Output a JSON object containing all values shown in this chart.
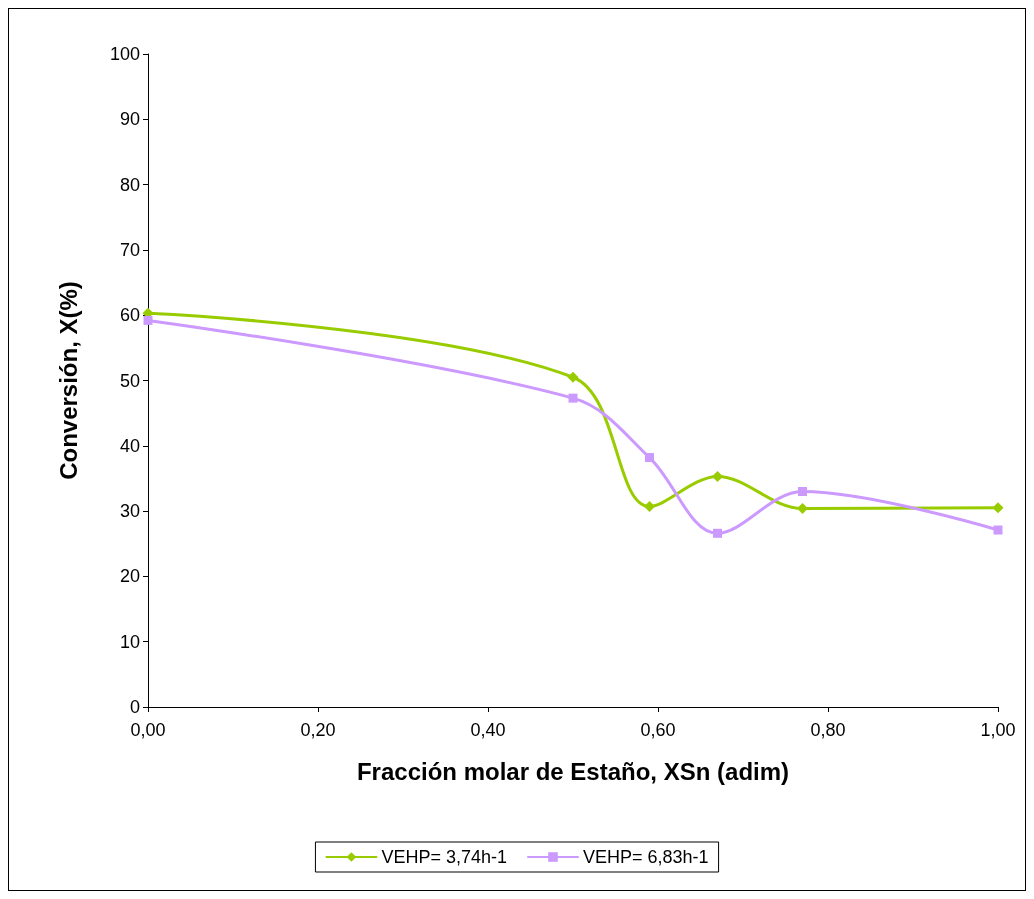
{
  "chart_data": {
    "type": "line",
    "xlabel": "Fracción molar de Estaño, XSn (adim)",
    "ylabel": "Conversión, X(%)",
    "xlim": [
      0,
      1
    ],
    "xticks": [
      {
        "value": 0,
        "label": "0,00"
      },
      {
        "value": 0.2,
        "label": "0,20"
      },
      {
        "value": 0.4,
        "label": "0,40"
      },
      {
        "value": 0.6,
        "label": "0,60"
      },
      {
        "value": 0.8,
        "label": "0,80"
      },
      {
        "value": 1,
        "label": "1,00"
      }
    ],
    "ylim": [
      0,
      100
    ],
    "yticks": [
      0,
      10,
      20,
      30,
      40,
      50,
      60,
      70,
      80,
      90,
      100
    ],
    "grid": false,
    "legend": "bottom",
    "series": [
      {
        "name": "VEHP= 3,74h-1",
        "color": "#99cc00",
        "marker": "diamond",
        "x": [
          0,
          0.5,
          0.59,
          0.67,
          0.77,
          1
        ],
        "values": [
          60.3,
          50.5,
          30.7,
          35.3,
          30.4,
          30.5
        ]
      },
      {
        "name": "VEHP= 6,83h-1",
        "color": "#cc99ff",
        "marker": "square",
        "x": [
          0,
          0.5,
          0.59,
          0.67,
          0.77,
          1
        ],
        "values": [
          59.2,
          47.3,
          38.2,
          26.6,
          33,
          27.1
        ]
      }
    ]
  }
}
